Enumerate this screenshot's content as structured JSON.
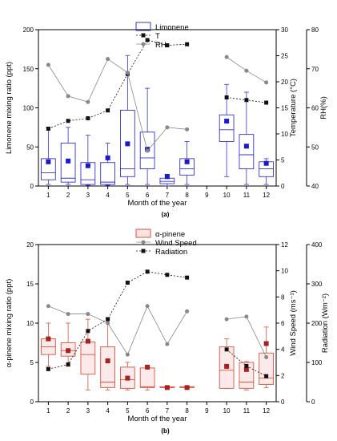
{
  "chart_data": [
    {
      "type": "box",
      "panel_label": "(a)",
      "xlabel": "Month of the year",
      "ylabel": "Limonene mixing ratio (ppt)",
      "ylabel_right": "Temperature (°C)",
      "ylabel_right2": "RH(%)",
      "categories": [
        "1",
        "2",
        "3",
        "4",
        "5",
        "6",
        "7",
        "8",
        "9",
        "10",
        "11",
        "12"
      ],
      "xlim": [
        0.5,
        12.5
      ],
      "ylim": [
        0,
        200
      ],
      "y_ticks": [
        0,
        50,
        100,
        150,
        200
      ],
      "y2lim": [
        0,
        30
      ],
      "y2_ticks": [
        0,
        5,
        10,
        15,
        20,
        25,
        30
      ],
      "y3lim": [
        40,
        80
      ],
      "y3_ticks": [
        40,
        50,
        60,
        70,
        80
      ],
      "legend": [
        "Limonene",
        "T",
        "RH"
      ],
      "legend_position": "top-right",
      "colors": {
        "box": "#3333cc",
        "mean": "#1a1acc",
        "T": "#111111",
        "RH": "#888888"
      },
      "series": [
        {
          "name": "Limonene",
          "boxes": [
            {
              "x": 1,
              "whisker_low": 2,
              "q1": 8,
              "median": 17,
              "q3": 35,
              "whisker_high": 75,
              "mean": 31
            },
            {
              "x": 2,
              "whisker_low": 2,
              "q1": 5,
              "median": 10,
              "q3": 55,
              "whisker_high": 75,
              "mean": 32
            },
            {
              "x": 3,
              "whisker_low": 1,
              "q1": 2,
              "median": 8,
              "q3": 30,
              "whisker_high": 65,
              "mean": 26
            },
            {
              "x": 4,
              "whisker_low": 1,
              "q1": 2,
              "median": 5,
              "q3": 30,
              "whisker_high": 55,
              "mean": 36
            },
            {
              "x": 5,
              "whisker_low": 2,
              "q1": 12,
              "median": 22,
              "q3": 97,
              "whisker_high": 167,
              "mean": 54
            },
            {
              "x": 6,
              "whisker_low": 2,
              "q1": 22,
              "median": 36,
              "q3": 69,
              "whisker_high": 125,
              "mean": 47
            },
            {
              "x": 7,
              "whisker_low": 0,
              "q1": 3,
              "median": 6,
              "q3": 10,
              "whisker_high": 15,
              "mean": 12
            },
            {
              "x": 8,
              "whisker_low": 2,
              "q1": 14,
              "median": 22,
              "q3": 35,
              "whisker_high": 57,
              "mean": 31
            },
            {
              "x": 10,
              "whisker_low": 12,
              "q1": 57,
              "median": 72,
              "q3": 91,
              "whisker_high": 130,
              "mean": 83
            },
            {
              "x": 11,
              "whisker_low": 2,
              "q1": 22,
              "median": 40,
              "q3": 66,
              "whisker_high": 120,
              "mean": 51
            },
            {
              "x": 12,
              "whisker_low": 2,
              "q1": 12,
              "median": 22,
              "q3": 31,
              "whisker_high": 35,
              "mean": 29
            }
          ]
        },
        {
          "name": "T",
          "x": [
            1,
            2,
            3,
            4,
            5,
            6,
            7,
            8,
            10,
            11,
            12
          ],
          "values": [
            11,
            12.5,
            13,
            14.5,
            21.5,
            28,
            27,
            27.2,
            17,
            16.5,
            16
          ]
        },
        {
          "name": "RH",
          "x": [
            1,
            2,
            3,
            4,
            5,
            6,
            7,
            8,
            10,
            11,
            12
          ],
          "values": [
            71,
            63,
            61.5,
            72.5,
            69,
            49,
            55,
            54.5,
            73,
            69.5,
            66.5
          ]
        }
      ]
    },
    {
      "type": "box",
      "panel_label": "(b)",
      "xlabel": "Month of the year",
      "ylabel": "α-pinene mixing ratio (ppt)",
      "ylabel_right": "Wind Speed (ms⁻¹)",
      "ylabel_right2": "Radiation (Wm⁻²)",
      "categories": [
        "1",
        "2",
        "3",
        "4",
        "5",
        "6",
        "7",
        "8",
        "9",
        "10",
        "11",
        "12"
      ],
      "xlim": [
        0.5,
        12.5
      ],
      "ylim": [
        0,
        20
      ],
      "y_ticks": [
        0,
        5,
        10,
        15,
        20
      ],
      "y2lim": [
        0,
        12
      ],
      "y2_ticks": [
        0,
        2,
        4,
        6,
        8,
        10,
        12
      ],
      "y3lim": [
        0,
        400
      ],
      "y3_ticks": [
        0,
        100,
        200,
        300,
        400
      ],
      "legend": [
        "α-pinene",
        "Wind Speed",
        "Radiation"
      ],
      "legend_position": "top-right",
      "colors": {
        "box": "#d9553f",
        "box_fill": "#fbe3e3",
        "mean": "#a82121",
        "Wind Speed": "#888888",
        "Radiation": "#111111"
      },
      "series": [
        {
          "name": "α-pinene",
          "boxes": [
            {
              "x": 1,
              "whisker_low": 4.5,
              "q1": 6,
              "median": 7,
              "q3": 8,
              "whisker_high": 10,
              "mean": 8
            },
            {
              "x": 2,
              "whisker_low": 4.5,
              "q1": 5.8,
              "median": 6.5,
              "q3": 7.5,
              "whisker_high": 10,
              "mean": 6.5
            },
            {
              "x": 3,
              "whisker_low": 1.5,
              "q1": 3.5,
              "median": 6,
              "q3": 7.6,
              "whisker_high": 10.5,
              "mean": 7.7
            },
            {
              "x": 4,
              "whisker_low": 1.5,
              "q1": 1.8,
              "median": 2.5,
              "q3": 7,
              "whisker_high": 10.7,
              "mean": 5.2
            },
            {
              "x": 5,
              "whisker_low": 1.5,
              "q1": 1.7,
              "median": 2.8,
              "q3": 4.4,
              "whisker_high": 5,
              "mean": 3
            },
            {
              "x": 6,
              "whisker_low": 1.5,
              "q1": 1.8,
              "median": 1.9,
              "q3": 4.3,
              "whisker_high": 4.6,
              "mean": 4.4
            },
            {
              "x": 7,
              "whisker_low": 1.7,
              "q1": 1.8,
              "median": 1.8,
              "q3": 1.9,
              "whisker_high": 1.9,
              "mean": 1.8
            },
            {
              "x": 8,
              "whisker_low": 1.7,
              "q1": 1.8,
              "median": 1.9,
              "q3": 1.9,
              "whisker_high": 2.0,
              "mean": 1.8
            },
            {
              "x": 10,
              "whisker_low": 1.7,
              "q1": 1.7,
              "median": 4,
              "q3": 7.0,
              "whisker_high": 8.0,
              "mean": 4.5
            },
            {
              "x": 11,
              "whisker_low": 1.5,
              "q1": 1.7,
              "median": 2.5,
              "q3": 5.0,
              "whisker_high": 5.1,
              "mean": 4.1
            },
            {
              "x": 12,
              "whisker_low": 1.8,
              "q1": 2.2,
              "median": 3,
              "q3": 6.2,
              "whisker_high": 9.5,
              "mean": 7.4
            }
          ]
        },
        {
          "name": "Wind Speed",
          "x": [
            1,
            2,
            3,
            4,
            5,
            6,
            7,
            8,
            10,
            11,
            12
          ],
          "values": [
            7.3,
            6.7,
            6.7,
            6.0,
            3.6,
            7.3,
            4.4,
            6.9,
            6.3,
            6.5,
            3.4
          ]
        },
        {
          "name": "Radiation",
          "x": [
            1,
            2,
            3,
            4,
            5,
            6,
            7,
            8,
            10,
            11,
            12
          ],
          "values": [
            83,
            95,
            180,
            210,
            303,
            331,
            323,
            316,
            133,
            91,
            65
          ]
        }
      ]
    }
  ]
}
